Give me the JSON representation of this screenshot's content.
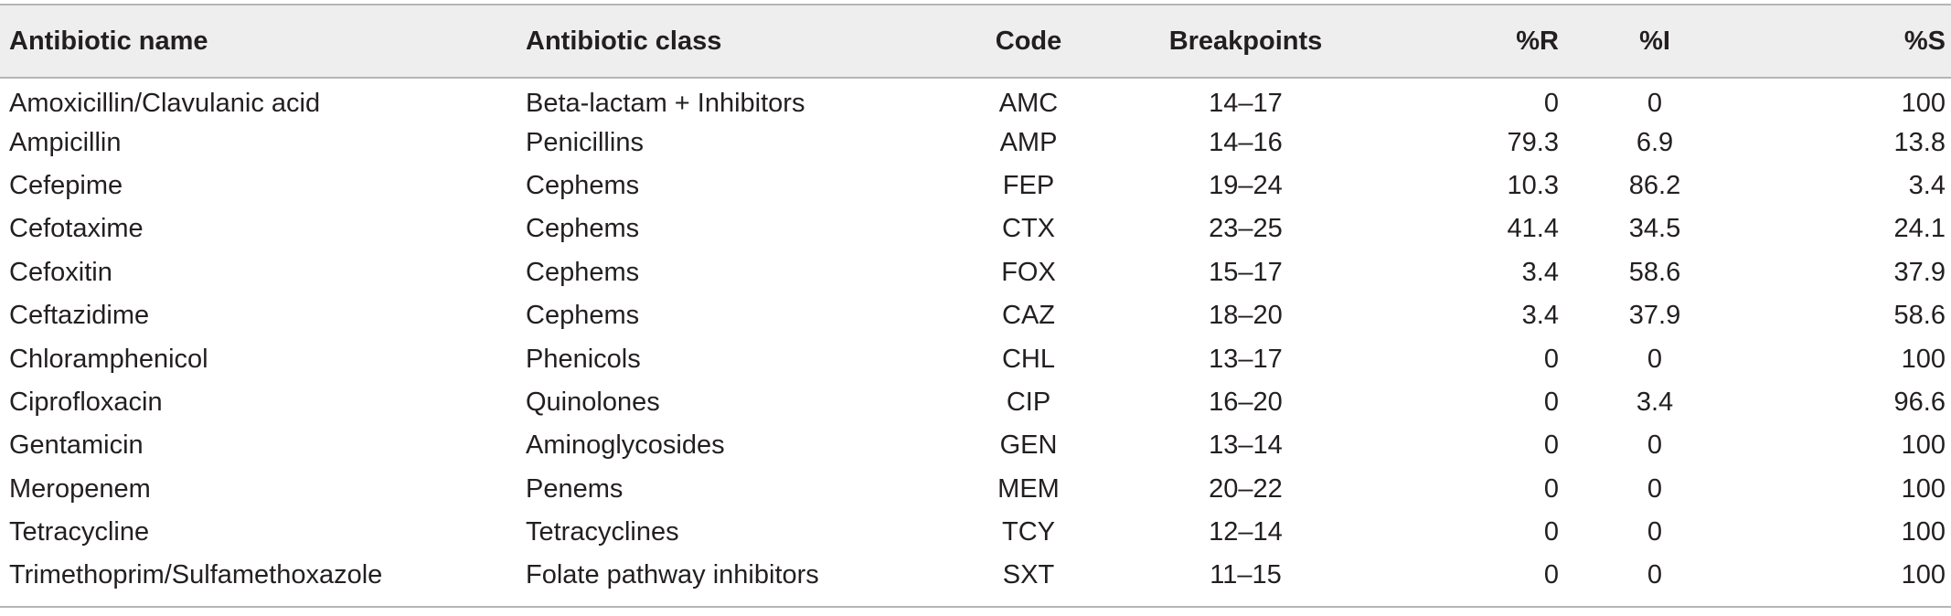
{
  "table": {
    "headers": {
      "name": "Antibiotic name",
      "class": "Antibiotic class",
      "code": "Code",
      "breakpoints": "Breakpoints",
      "r": "%R",
      "i": "%I",
      "s": "%S"
    },
    "rows": [
      {
        "name": "Amoxicillin/Clavulanic acid",
        "class": "Beta-lactam + Inhibitors",
        "code": "AMC",
        "breakpoints": "14–17",
        "r": "0",
        "i": "0",
        "s": "100"
      },
      {
        "name": "Ampicillin",
        "class": "Penicillins",
        "code": "AMP",
        "breakpoints": "14–16",
        "r": "79.3",
        "i": "6.9",
        "s": "13.8"
      },
      {
        "name": "Cefepime",
        "class": "Cephems",
        "code": "FEP",
        "breakpoints": "19–24",
        "r": "10.3",
        "i": "86.2",
        "s": "3.4"
      },
      {
        "name": "Cefotaxime",
        "class": "Cephems",
        "code": "CTX",
        "breakpoints": "23–25",
        "r": "41.4",
        "i": "34.5",
        "s": "24.1"
      },
      {
        "name": "Cefoxitin",
        "class": "Cephems",
        "code": "FOX",
        "breakpoints": "15–17",
        "r": "3.4",
        "i": "58.6",
        "s": "37.9"
      },
      {
        "name": "Ceftazidime",
        "class": "Cephems",
        "code": "CAZ",
        "breakpoints": "18–20",
        "r": "3.4",
        "i": "37.9",
        "s": "58.6"
      },
      {
        "name": "Chloramphenicol",
        "class": "Phenicols",
        "code": "CHL",
        "breakpoints": "13–17",
        "r": "0",
        "i": "0",
        "s": "100"
      },
      {
        "name": "Ciprofloxacin",
        "class": "Quinolones",
        "code": "CIP",
        "breakpoints": "16–20",
        "r": "0",
        "i": "3.4",
        "s": "96.6"
      },
      {
        "name": "Gentamicin",
        "class": "Aminoglycosides",
        "code": "GEN",
        "breakpoints": "13–14",
        "r": "0",
        "i": "0",
        "s": "100"
      },
      {
        "name": "Meropenem",
        "class": "Penems",
        "code": "MEM",
        "breakpoints": "20–22",
        "r": "0",
        "i": "0",
        "s": "100"
      },
      {
        "name": "Tetracycline",
        "class": "Tetracyclines",
        "code": "TCY",
        "breakpoints": "12–14",
        "r": "0",
        "i": "0",
        "s": "100"
      },
      {
        "name": "Trimethoprim/Sulfamethoxazole",
        "class": "Folate pathway inhibitors",
        "code": "SXT",
        "breakpoints": "11–15",
        "r": "0",
        "i": "0",
        "s": "100"
      }
    ]
  }
}
